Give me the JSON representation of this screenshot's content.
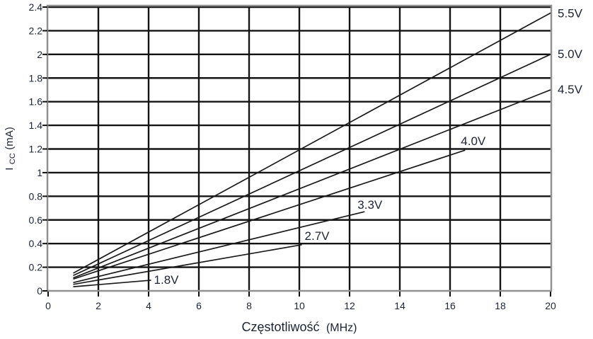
{
  "chart_data": {
    "type": "line",
    "title": "",
    "xlabel_main": "Częstotliwość",
    "xlabel_unit": "(MHz)",
    "ylabel_main": "I",
    "ylabel_sub": "CC",
    "ylabel_unit": " (mA)",
    "xlim": [
      0,
      20
    ],
    "ylim": [
      0,
      2.4
    ],
    "grid": true,
    "legend_position": "line-end-labels",
    "xticks": {
      "values": [
        0,
        2,
        4,
        6,
        8,
        10,
        12,
        14,
        16,
        18,
        20
      ],
      "labels": [
        "0",
        "2",
        "4",
        "6",
        "8",
        "10",
        "12",
        "14",
        "16",
        "18",
        "20"
      ]
    },
    "yticks": {
      "values": [
        0,
        0.2,
        0.4,
        0.6,
        0.8,
        1,
        1.2,
        1.4,
        1.6,
        1.8,
        2,
        2.2,
        2.4
      ],
      "labels": [
        "0",
        "0.2",
        "0.4",
        "0.6",
        "0.8",
        "1",
        "1.2",
        "1.4",
        "1.6",
        "1.8",
        "2",
        "2.2",
        "2.4"
      ]
    },
    "series": [
      {
        "name": "5.5V",
        "points": [
          [
            1,
            0.15
          ],
          [
            20,
            2.35
          ]
        ],
        "label_placement": "right",
        "label_dx": 10,
        "label_dy": 6
      },
      {
        "name": "5.0V",
        "points": [
          [
            1,
            0.13
          ],
          [
            20,
            2.0
          ]
        ],
        "label_placement": "right",
        "label_dx": 10,
        "label_dy": 5
      },
      {
        "name": "4.5V",
        "points": [
          [
            1,
            0.11
          ],
          [
            20,
            1.7
          ]
        ],
        "label_placement": "right",
        "label_dx": 10,
        "label_dy": 5
      },
      {
        "name": "4.0V",
        "points": [
          [
            1,
            0.1
          ],
          [
            16.6,
            1.19
          ]
        ],
        "label_placement": "end",
        "label_dx": -6,
        "label_dy": -7
      },
      {
        "name": "3.3V",
        "points": [
          [
            1,
            0.07
          ],
          [
            12.6,
            0.67
          ]
        ],
        "label_placement": "end",
        "label_dx": -10,
        "label_dy": -4
      },
      {
        "name": "2.7V",
        "points": [
          [
            1,
            0.055
          ],
          [
            10.1,
            0.39
          ]
        ],
        "label_placement": "end",
        "label_dx": 4,
        "label_dy": -7
      },
      {
        "name": "1.8V",
        "points": [
          [
            1,
            0.035
          ],
          [
            4.1,
            0.09
          ]
        ],
        "label_placement": "end",
        "label_dx": 4,
        "label_dy": 5
      }
    ]
  },
  "colors": {
    "background": "#ffffff",
    "grid": "#141414",
    "plot_border": "#909090",
    "line": "#1a1a1a",
    "tick": "#111111",
    "text": "#1d2433"
  }
}
